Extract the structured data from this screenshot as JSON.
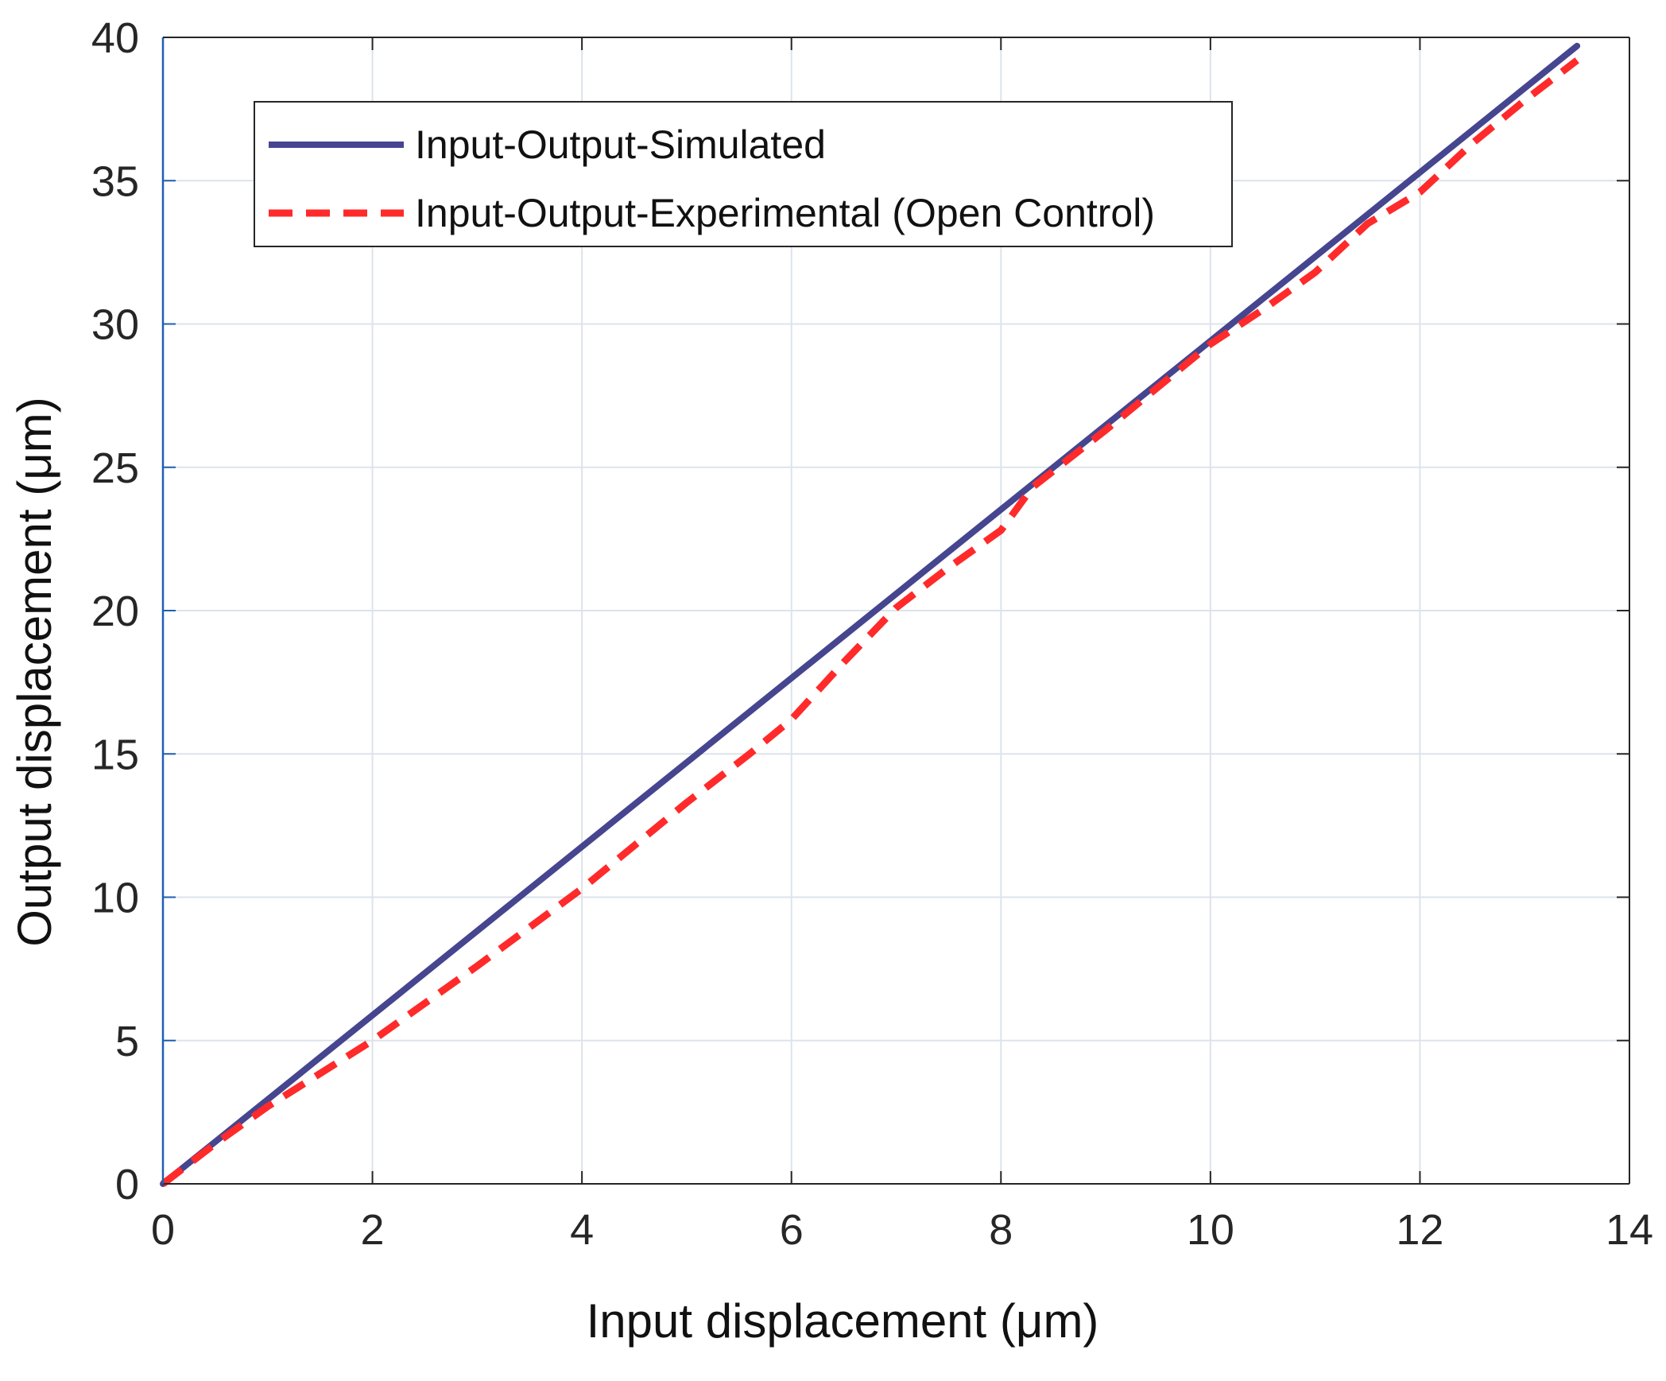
{
  "chart_data": {
    "type": "line",
    "title": "",
    "xlabel": "Input displacement (μm)",
    "ylabel": "Output displacement (μm)",
    "xlim": [
      0,
      14
    ],
    "ylim": [
      0,
      40
    ],
    "xticks": [
      "0",
      "2",
      "4",
      "6",
      "8",
      "10",
      "12",
      "14"
    ],
    "yticks": [
      "0",
      "5",
      "10",
      "15",
      "20",
      "25",
      "30",
      "35",
      "40"
    ],
    "grid": true,
    "legend_position": "top-left",
    "series": [
      {
        "name": "Input-Output-Simulated",
        "color": "#46458f",
        "style": "solid",
        "x": [
          0,
          13.5
        ],
        "y": [
          0,
          39.7
        ]
      },
      {
        "name": "Input-Output-Experimental (Open Control)",
        "color": "#ff2a2a",
        "style": "dashed",
        "x": [
          0,
          0.5,
          1,
          2,
          3,
          4,
          5,
          5.6,
          6,
          6.5,
          7,
          7.5,
          8,
          8.3,
          9,
          9.5,
          10,
          10.5,
          11,
          11.5,
          12,
          12.5,
          13,
          13.5
        ],
        "y": [
          0,
          1.4,
          2.7,
          5.0,
          7.6,
          10.3,
          13.3,
          15.0,
          16.2,
          18.2,
          20.1,
          21.5,
          22.8,
          24.3,
          26.3,
          27.8,
          29.3,
          30.5,
          31.8,
          33.5,
          34.6,
          36.3,
          37.8,
          39.2
        ]
      }
    ]
  }
}
